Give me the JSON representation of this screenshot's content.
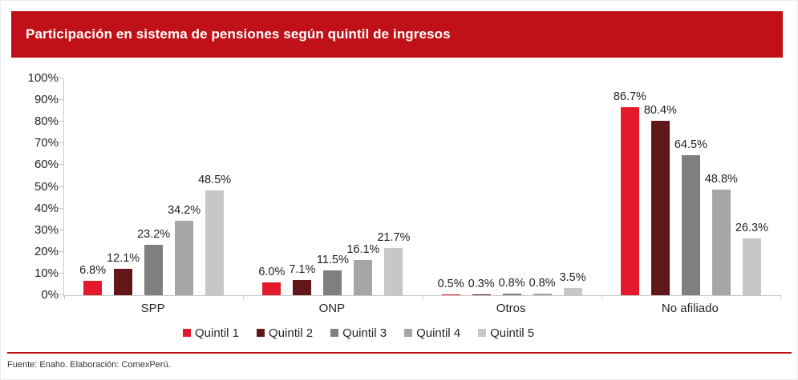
{
  "header": {
    "title": "Participación en sistema de pensiones según quintil de ingresos",
    "bar_color": "#c01118"
  },
  "footer": {
    "source": "Fuente: Enaho. Elaboración: ComexPerú.",
    "rule_color": "#c01118"
  },
  "chart_data": {
    "type": "bar",
    "title": "Participación en sistema de pensiones según quintil de ingresos",
    "categories": [
      "SPP",
      "ONP",
      "Otros",
      "No afiliado"
    ],
    "series": [
      {
        "name": "Quintil 1",
        "color": "#e21a2c",
        "values": [
          6.8,
          6.0,
          0.5,
          86.7
        ]
      },
      {
        "name": "Quintil 2",
        "color": "#611717",
        "values": [
          12.1,
          7.1,
          0.3,
          80.4
        ]
      },
      {
        "name": "Quintil 3",
        "color": "#7f7f7f",
        "values": [
          23.2,
          11.5,
          0.8,
          64.5
        ]
      },
      {
        "name": "Quintil 4",
        "color": "#a6a6a6",
        "values": [
          34.2,
          16.1,
          0.8,
          48.8
        ]
      },
      {
        "name": "Quintil 5",
        "color": "#c7c7c7",
        "values": [
          48.5,
          21.7,
          3.5,
          26.3
        ]
      }
    ],
    "data_labels": [
      [
        "6.8%",
        "6.0%",
        "0.5%",
        "86.7%"
      ],
      [
        "12.1%",
        "7.1%",
        "0.3%",
        "80.4%"
      ],
      [
        "23.2%",
        "11.5%",
        "0.8%",
        "64.5%"
      ],
      [
        "34.2%",
        "16.1%",
        "0.8%",
        "48.8%"
      ],
      [
        "48.5%",
        "21.7%",
        "3.5%",
        "26.3%"
      ]
    ],
    "y_axis": {
      "min": 0,
      "max": 100,
      "step": 10,
      "tick_labels": [
        "0%",
        "10%",
        "20%",
        "30%",
        "40%",
        "50%",
        "60%",
        "70%",
        "80%",
        "90%",
        "100%"
      ]
    },
    "xlabel": "",
    "ylabel": "",
    "grid": false,
    "legend_position": "bottom",
    "axis_color": "#c8c8c8"
  }
}
